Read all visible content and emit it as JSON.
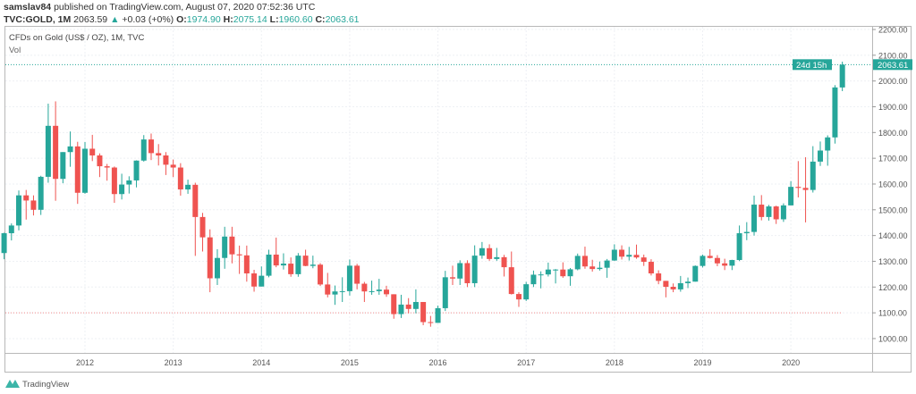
{
  "header": {
    "author": "samslav84",
    "published_text": "published on TradingView.com, August 07, 2020 07:52:36 UTC",
    "symbol": "TVC:GOLD, 1M",
    "last": "2063.59",
    "change": "+0.03 (+0%)",
    "o_label": "O:",
    "o": "1974.90",
    "h_label": "H:",
    "h": "2075.14",
    "l_label": "L:",
    "l": "1960.60",
    "c_label": "C:",
    "c": "2063.61"
  },
  "legend": {
    "title": "CFDs on Gold (US$ / OZ), 1M, TVC",
    "vol": "Vol"
  },
  "price_tag": {
    "price": "2063.61",
    "countdown": "24d 15h"
  },
  "footer": {
    "brand": "TradingView"
  },
  "colors": {
    "up": "#26a69a",
    "down": "#ef5350",
    "grid": "#eef0f4",
    "axis": "#999999"
  },
  "chart_data": {
    "type": "candlestick",
    "interval": "1M",
    "ylim": [
      950,
      2220
    ],
    "y_ticks": [
      "1000.00",
      "1100.00",
      "1200.00",
      "1300.00",
      "1400.00",
      "1500.00",
      "1600.00",
      "1700.00",
      "1800.00",
      "1900.00",
      "2000.00",
      "2100.00",
      "2200.00"
    ],
    "x_ticks": [
      "2012",
      "2013",
      "2014",
      "2015",
      "2016",
      "2017",
      "2018",
      "2019",
      "2020"
    ],
    "last_price_line": 2063.61,
    "horizontal_line": 1100,
    "grid": true,
    "candles_columns": [
      "month",
      "open",
      "high",
      "low",
      "close"
    ],
    "candles": [
      [
        "2011-02",
        1332,
        1411,
        1308,
        1409
      ],
      [
        "2011-03",
        1409,
        1447,
        1381,
        1439
      ],
      [
        "2011-04",
        1439,
        1575,
        1420,
        1556
      ],
      [
        "2011-05",
        1556,
        1577,
        1462,
        1536
      ],
      [
        "2011-06",
        1536,
        1556,
        1478,
        1500
      ],
      [
        "2011-07",
        1500,
        1632,
        1480,
        1628
      ],
      [
        "2011-08",
        1628,
        1912,
        1605,
        1826
      ],
      [
        "2011-09",
        1826,
        1921,
        1535,
        1620
      ],
      [
        "2011-10",
        1620,
        1724,
        1603,
        1724
      ],
      [
        "2011-11",
        1724,
        1804,
        1667,
        1746
      ],
      [
        "2011-12",
        1746,
        1764,
        1523,
        1566
      ],
      [
        "2012-01",
        1566,
        1763,
        1562,
        1737
      ],
      [
        "2012-02",
        1737,
        1791,
        1689,
        1711
      ],
      [
        "2012-03",
        1711,
        1719,
        1627,
        1669
      ],
      [
        "2012-04",
        1669,
        1678,
        1613,
        1664
      ],
      [
        "2012-05",
        1664,
        1668,
        1527,
        1561
      ],
      [
        "2012-06",
        1561,
        1640,
        1540,
        1598
      ],
      [
        "2012-07",
        1598,
        1630,
        1563,
        1614
      ],
      [
        "2012-08",
        1614,
        1692,
        1587,
        1691
      ],
      [
        "2012-09",
        1691,
        1790,
        1687,
        1773
      ],
      [
        "2012-10",
        1773,
        1796,
        1693,
        1720
      ],
      [
        "2012-11",
        1720,
        1755,
        1672,
        1711
      ],
      [
        "2012-12",
        1711,
        1724,
        1635,
        1675
      ],
      [
        "2013-01",
        1675,
        1695,
        1627,
        1664
      ],
      [
        "2013-02",
        1664,
        1681,
        1555,
        1579
      ],
      [
        "2013-03",
        1579,
        1617,
        1562,
        1597
      ],
      [
        "2013-04",
        1597,
        1605,
        1321,
        1472
      ],
      [
        "2013-05",
        1472,
        1488,
        1338,
        1393
      ],
      [
        "2013-06",
        1393,
        1424,
        1180,
        1234
      ],
      [
        "2013-07",
        1234,
        1347,
        1208,
        1313
      ],
      [
        "2013-08",
        1313,
        1434,
        1271,
        1396
      ],
      [
        "2013-09",
        1396,
        1434,
        1292,
        1327
      ],
      [
        "2013-10",
        1327,
        1361,
        1251,
        1323
      ],
      [
        "2013-11",
        1323,
        1361,
        1221,
        1253
      ],
      [
        "2013-12",
        1253,
        1267,
        1182,
        1202
      ],
      [
        "2014-01",
        1202,
        1280,
        1202,
        1244
      ],
      [
        "2014-02",
        1244,
        1345,
        1238,
        1326
      ],
      [
        "2014-03",
        1326,
        1392,
        1277,
        1284
      ],
      [
        "2014-04",
        1284,
        1331,
        1268,
        1291
      ],
      [
        "2014-05",
        1291,
        1315,
        1240,
        1250
      ],
      [
        "2014-06",
        1250,
        1332,
        1240,
        1322
      ],
      [
        "2014-07",
        1322,
        1345,
        1281,
        1282
      ],
      [
        "2014-08",
        1282,
        1322,
        1273,
        1287
      ],
      [
        "2014-09",
        1287,
        1293,
        1204,
        1210
      ],
      [
        "2014-10",
        1210,
        1255,
        1160,
        1171
      ],
      [
        "2014-11",
        1171,
        1206,
        1131,
        1183
      ],
      [
        "2014-12",
        1183,
        1238,
        1142,
        1184
      ],
      [
        "2015-01",
        1184,
        1307,
        1167,
        1283
      ],
      [
        "2015-02",
        1283,
        1290,
        1191,
        1213
      ],
      [
        "2015-03",
        1213,
        1220,
        1142,
        1183
      ],
      [
        "2015-04",
        1183,
        1225,
        1170,
        1184
      ],
      [
        "2015-05",
        1184,
        1232,
        1170,
        1190
      ],
      [
        "2015-06",
        1190,
        1205,
        1162,
        1172
      ],
      [
        "2015-07",
        1172,
        1172,
        1077,
        1095
      ],
      [
        "2015-08",
        1095,
        1170,
        1080,
        1132
      ],
      [
        "2015-09",
        1132,
        1157,
        1098,
        1115
      ],
      [
        "2015-10",
        1115,
        1191,
        1098,
        1142
      ],
      [
        "2015-11",
        1142,
        1142,
        1052,
        1064
      ],
      [
        "2015-12",
        1064,
        1088,
        1046,
        1061
      ],
      [
        "2016-01",
        1061,
        1128,
        1061,
        1118
      ],
      [
        "2016-02",
        1118,
        1263,
        1107,
        1238
      ],
      [
        "2016-03",
        1238,
        1283,
        1208,
        1233
      ],
      [
        "2016-04",
        1233,
        1304,
        1208,
        1293
      ],
      [
        "2016-05",
        1293,
        1304,
        1200,
        1215
      ],
      [
        "2016-06",
        1215,
        1362,
        1200,
        1322
      ],
      [
        "2016-07",
        1322,
        1375,
        1310,
        1351
      ],
      [
        "2016-08",
        1351,
        1366,
        1302,
        1309
      ],
      [
        "2016-09",
        1309,
        1352,
        1302,
        1316
      ],
      [
        "2016-10",
        1316,
        1325,
        1241,
        1277
      ],
      [
        "2016-11",
        1277,
        1338,
        1171,
        1173
      ],
      [
        "2016-12",
        1173,
        1180,
        1123,
        1152
      ],
      [
        "2017-01",
        1152,
        1220,
        1146,
        1211
      ],
      [
        "2017-02",
        1211,
        1264,
        1200,
        1248
      ],
      [
        "2017-03",
        1248,
        1261,
        1195,
        1249
      ],
      [
        "2017-04",
        1249,
        1295,
        1241,
        1268
      ],
      [
        "2017-05",
        1268,
        1270,
        1214,
        1268
      ],
      [
        "2017-06",
        1268,
        1296,
        1236,
        1242
      ],
      [
        "2017-07",
        1242,
        1274,
        1205,
        1269
      ],
      [
        "2017-08",
        1269,
        1330,
        1265,
        1321
      ],
      [
        "2017-09",
        1321,
        1357,
        1271,
        1280
      ],
      [
        "2017-10",
        1280,
        1306,
        1260,
        1270
      ],
      [
        "2017-11",
        1270,
        1299,
        1264,
        1275
      ],
      [
        "2017-12",
        1275,
        1309,
        1236,
        1303
      ],
      [
        "2018-01",
        1303,
        1366,
        1302,
        1345
      ],
      [
        "2018-02",
        1345,
        1362,
        1307,
        1318
      ],
      [
        "2018-03",
        1318,
        1356,
        1303,
        1325
      ],
      [
        "2018-04",
        1325,
        1365,
        1310,
        1315
      ],
      [
        "2018-05",
        1315,
        1326,
        1282,
        1298
      ],
      [
        "2018-06",
        1298,
        1308,
        1245,
        1253
      ],
      [
        "2018-07",
        1253,
        1265,
        1211,
        1224
      ],
      [
        "2018-08",
        1224,
        1224,
        1160,
        1201
      ],
      [
        "2018-09",
        1201,
        1214,
        1180,
        1191
      ],
      [
        "2018-10",
        1191,
        1243,
        1182,
        1215
      ],
      [
        "2018-11",
        1215,
        1237,
        1196,
        1221
      ],
      [
        "2018-12",
        1221,
        1284,
        1221,
        1282
      ],
      [
        "2019-01",
        1282,
        1326,
        1276,
        1321
      ],
      [
        "2019-02",
        1321,
        1347,
        1311,
        1313
      ],
      [
        "2019-03",
        1313,
        1324,
        1281,
        1292
      ],
      [
        "2019-04",
        1292,
        1310,
        1266,
        1283
      ],
      [
        "2019-05",
        1283,
        1306,
        1266,
        1305
      ],
      [
        "2019-06",
        1305,
        1439,
        1301,
        1409
      ],
      [
        "2019-07",
        1409,
        1452,
        1382,
        1414
      ],
      [
        "2019-08",
        1414,
        1555,
        1400,
        1520
      ],
      [
        "2019-09",
        1520,
        1557,
        1459,
        1472
      ],
      [
        "2019-10",
        1472,
        1519,
        1458,
        1513
      ],
      [
        "2019-11",
        1513,
        1516,
        1445,
        1463
      ],
      [
        "2019-12",
        1463,
        1525,
        1453,
        1517
      ],
      [
        "2020-01",
        1517,
        1611,
        1517,
        1589
      ],
      [
        "2020-02",
        1589,
        1689,
        1548,
        1585
      ],
      [
        "2020-03",
        1585,
        1704,
        1451,
        1577
      ],
      [
        "2020-04",
        1577,
        1747,
        1567,
        1687
      ],
      [
        "2020-05",
        1687,
        1765,
        1670,
        1730
      ],
      [
        "2020-06",
        1730,
        1789,
        1671,
        1781
      ],
      [
        "2020-07",
        1781,
        1984,
        1757,
        1975
      ],
      [
        "2020-08",
        1974.9,
        2075.14,
        1960.6,
        2063.61
      ]
    ]
  }
}
